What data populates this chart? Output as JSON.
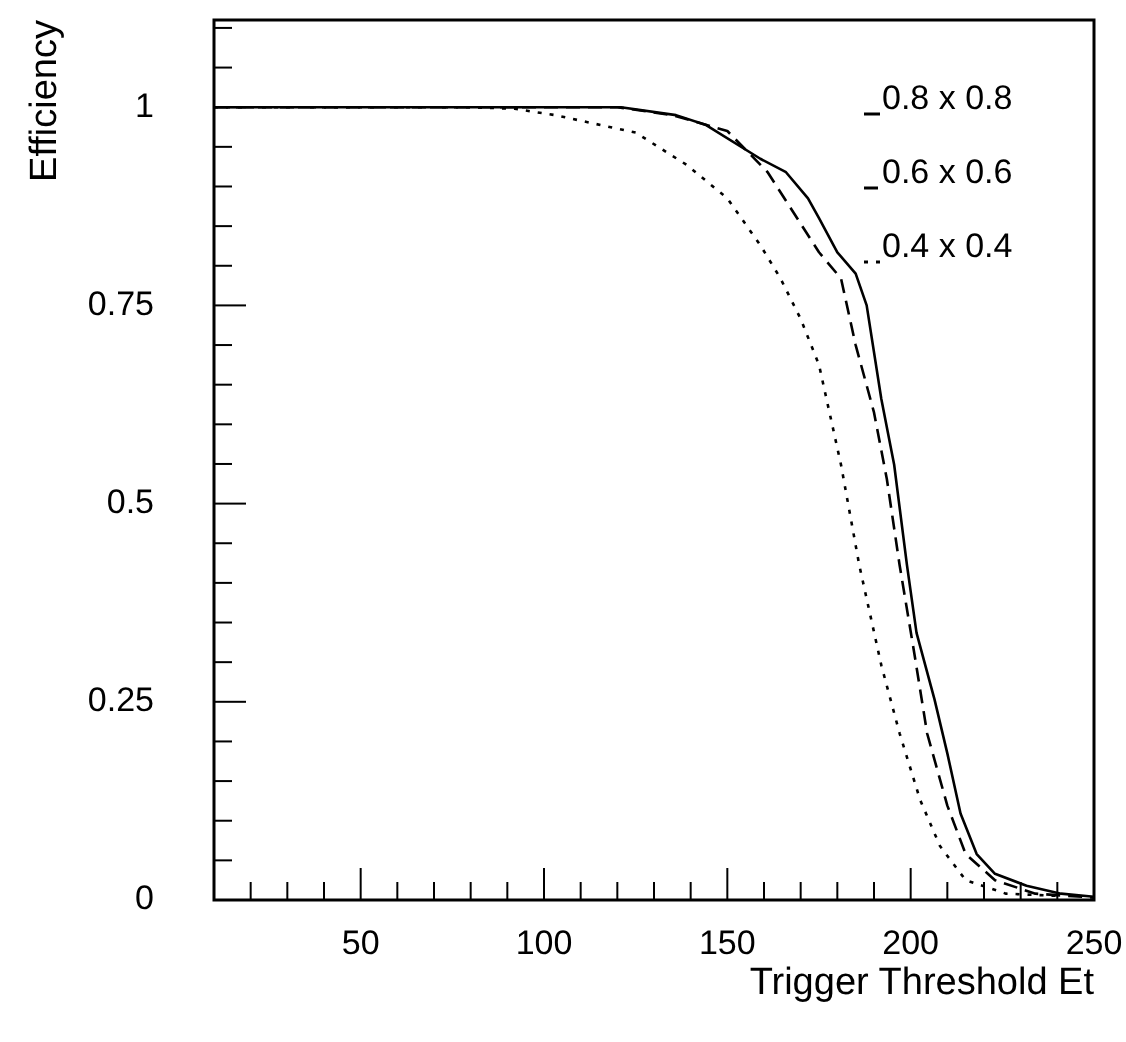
{
  "chart_data": {
    "type": "line",
    "xlabel": "Trigger Threshold Et",
    "ylabel": "Efficiency",
    "xlim": [
      10,
      250
    ],
    "ylim": [
      0,
      1.11
    ],
    "xticks": [
      {
        "value": 20,
        "label": null
      },
      {
        "value": 30,
        "label": null
      },
      {
        "value": 40,
        "label": null
      },
      50,
      {
        "value": 60,
        "label": null
      },
      {
        "value": 70,
        "label": null
      },
      {
        "value": 80,
        "label": null
      },
      {
        "value": 90,
        "label": null
      },
      100,
      {
        "value": 110,
        "label": null
      },
      {
        "value": 120,
        "label": null
      },
      {
        "value": 130,
        "label": null
      },
      {
        "value": 140,
        "label": null
      },
      150,
      {
        "value": 160,
        "label": null
      },
      {
        "value": 170,
        "label": null
      },
      {
        "value": 180,
        "label": null
      },
      {
        "value": 190,
        "label": null
      },
      200,
      {
        "value": 210,
        "label": null
      },
      {
        "value": 220,
        "label": null
      },
      {
        "value": 230,
        "label": null
      },
      {
        "value": 240,
        "label": null
      },
      250
    ],
    "yticks": [
      0,
      {
        "value": 0.05,
        "label": null
      },
      {
        "value": 0.1,
        "label": null
      },
      {
        "value": 0.15,
        "label": null
      },
      {
        "value": 0.2,
        "label": null
      },
      0.25,
      {
        "value": 0.3,
        "label": null
      },
      {
        "value": 0.35,
        "label": null
      },
      {
        "value": 0.4,
        "label": null
      },
      {
        "value": 0.45,
        "label": null
      },
      0.5,
      {
        "value": 0.55,
        "label": null
      },
      {
        "value": 0.6,
        "label": null
      },
      {
        "value": 0.65,
        "label": null
      },
      {
        "value": 0.7,
        "label": null
      },
      0.75,
      {
        "value": 0.8,
        "label": null
      },
      {
        "value": 0.85,
        "label": null
      },
      {
        "value": 0.9,
        "label": null
      },
      {
        "value": 0.95,
        "label": null
      },
      1,
      {
        "value": 1.05,
        "label": null
      },
      {
        "value": 1.1,
        "label": null
      }
    ],
    "legend": "top right",
    "marker": "none",
    "series": [
      {
        "name": "0.8 x 0.8",
        "color": "#000000",
        "line_style": "solid",
        "x": [
          10,
          121,
          136,
          144,
          159,
          166,
          172,
          175,
          180,
          185,
          188,
          192,
          195.5,
          199,
          201.6,
          206.5,
          210,
          213.6,
          218,
          223,
          231.6,
          241,
          250
        ],
        "values": [
          1,
          1,
          0.99,
          0.978,
          0.935,
          0.918,
          0.885,
          0.86,
          0.817,
          0.79,
          0.75,
          0.632,
          0.549,
          0.422,
          0.337,
          0.253,
          0.185,
          0.109,
          0.058,
          0.033,
          0.018,
          0.008,
          0.004
        ]
      },
      {
        "name": "0.6 x 0.6",
        "color": "#000000",
        "line_style": "dashed",
        "x": [
          10,
          120,
          135,
          150,
          161,
          175,
          181,
          185,
          190,
          193.5,
          197,
          201,
          204.5,
          210,
          215,
          223,
          234,
          250
        ],
        "values": [
          1,
          1,
          0.99,
          0.97,
          0.918,
          0.817,
          0.784,
          0.7,
          0.615,
          0.531,
          0.422,
          0.311,
          0.21,
          0.119,
          0.058,
          0.025,
          0.008,
          0.003
        ]
      },
      {
        "name": "0.4 x 0.4",
        "color": "#000000",
        "line_style": "dotted",
        "x": [
          10,
          80,
          92,
          103,
          125,
          139,
          150,
          159,
          164.5,
          170,
          175,
          181,
          186,
          192,
          197,
          202.6,
          208,
          215,
          226,
          241
        ],
        "values": [
          1,
          1,
          0.998,
          0.99,
          0.968,
          0.927,
          0.885,
          0.826,
          0.784,
          0.733,
          0.675,
          0.549,
          0.422,
          0.296,
          0.21,
          0.126,
          0.068,
          0.025,
          0.008,
          0.005
        ]
      }
    ]
  }
}
